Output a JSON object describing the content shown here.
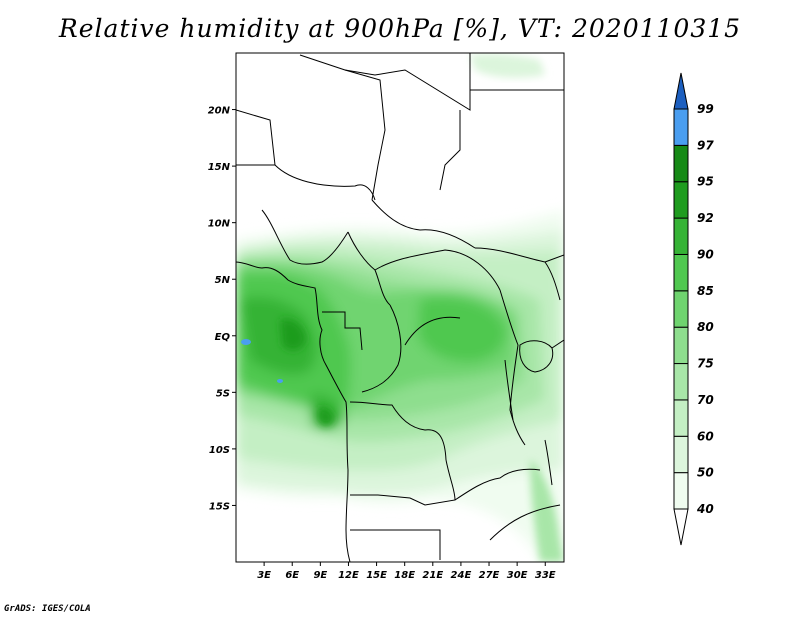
{
  "title": "Relative humidity at 900hPa [%], VT: 2020110315",
  "credit": "GrADS: IGES/COLA",
  "axes": {
    "lat_ticks": [
      {
        "value": 20,
        "label": "20N"
      },
      {
        "value": 15,
        "label": "15N"
      },
      {
        "value": 10,
        "label": "10N"
      },
      {
        "value": 5,
        "label": "5N"
      },
      {
        "value": 0,
        "label": "EQ"
      },
      {
        "value": -5,
        "label": "5S"
      },
      {
        "value": -10,
        "label": "10S"
      },
      {
        "value": -15,
        "label": "15S"
      }
    ],
    "lon_ticks": [
      {
        "value": 3,
        "label": "3E"
      },
      {
        "value": 6,
        "label": "6E"
      },
      {
        "value": 9,
        "label": "9E"
      },
      {
        "value": 12,
        "label": "12E"
      },
      {
        "value": 15,
        "label": "15E"
      },
      {
        "value": 18,
        "label": "18E"
      },
      {
        "value": 21,
        "label": "21E"
      },
      {
        "value": 24,
        "label": "24E"
      },
      {
        "value": 27,
        "label": "27E"
      },
      {
        "value": 30,
        "label": "30E"
      },
      {
        "value": 33,
        "label": "33E"
      }
    ],
    "lon_range": [
      0,
      35
    ],
    "lat_range": [
      -20,
      25
    ]
  },
  "colorbar": {
    "levels": [
      {
        "label": "40",
        "color": "#f0fcf0"
      },
      {
        "label": "50",
        "color": "#dcf5dc"
      },
      {
        "label": "60",
        "color": "#c4efc4"
      },
      {
        "label": "70",
        "color": "#a8e6a8"
      },
      {
        "label": "75",
        "color": "#8ede8e"
      },
      {
        "label": "80",
        "color": "#6fd46f"
      },
      {
        "label": "85",
        "color": "#50c850"
      },
      {
        "label": "90",
        "color": "#36b336"
      },
      {
        "label": "92",
        "color": "#1f9c1f"
      },
      {
        "label": "95",
        "color": "#168a16"
      },
      {
        "label": "97",
        "color": "#4a9ef0"
      },
      {
        "label": "99",
        "color": "#2673d9"
      }
    ],
    "top_color": "#1c5fbf"
  }
}
